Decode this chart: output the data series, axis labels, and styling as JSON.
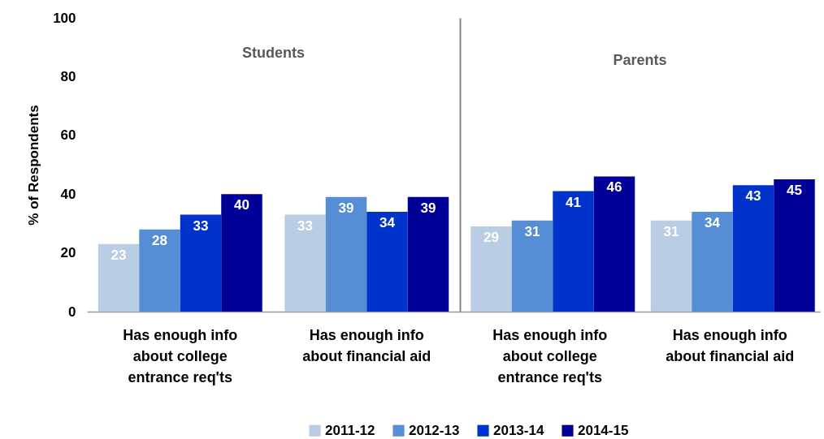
{
  "chart_data": [
    {
      "type": "bar",
      "title": "Students",
      "ylabel": "% of Respondents",
      "categories": [
        "Has enough info about college entrance req'ts",
        "Has enough info about financial aid"
      ],
      "series": [
        {
          "name": "2011-12",
          "color": "#b9cde5",
          "values": [
            23,
            33
          ]
        },
        {
          "name": "2012-13",
          "color": "#558ed5",
          "values": [
            28,
            39
          ]
        },
        {
          "name": "2013-14",
          "color": "#0033cc",
          "values": [
            33,
            34
          ]
        },
        {
          "name": "2014-15",
          "color": "#000099",
          "values": [
            40,
            39
          ]
        }
      ],
      "ylim": [
        0,
        100
      ],
      "yticks": [
        0,
        20,
        40,
        60,
        80,
        100
      ],
      "data_labels": true,
      "legend": "bottom",
      "grid": false
    },
    {
      "type": "bar",
      "title": "Parents",
      "categories": [
        "Has enough info about college entrance req'ts",
        "Has enough info about financial aid"
      ],
      "series": [
        {
          "color": "#b9cde5",
          "values": [
            29,
            31
          ]
        },
        {
          "color": "#558ed5",
          "values": [
            31,
            34
          ]
        },
        {
          "color": "#0033cc",
          "values": [
            41,
            43
          ]
        },
        {
          "color": "#000099",
          "values": [
            46,
            45
          ]
        }
      ],
      "ylim": [
        0,
        100
      ],
      "yticks": [
        0,
        20,
        40,
        60,
        80,
        100
      ],
      "data_labels": true,
      "tick_labels": "x",
      "grid": false
    }
  ]
}
